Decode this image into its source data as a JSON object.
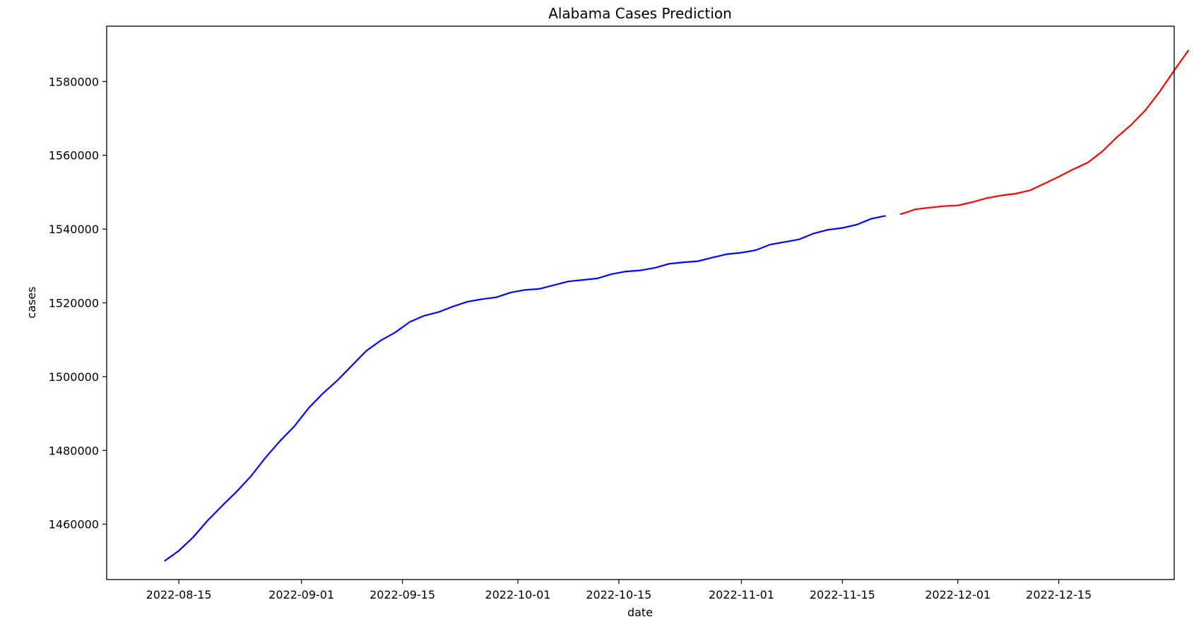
{
  "chart_data": {
    "type": "line",
    "title": "Alabama Cases Prediction",
    "xlabel": "date",
    "ylabel": "cases",
    "xlim": [
      "2022-08-05",
      "2022-12-31"
    ],
    "ylim": [
      1445000,
      1595000
    ],
    "x_ticks": [
      "2022-08-15",
      "2022-09-01",
      "2022-09-15",
      "2022-10-01",
      "2022-10-15",
      "2022-11-01",
      "2022-11-15",
      "2022-12-01",
      "2022-12-15"
    ],
    "y_ticks": [
      1460000,
      1480000,
      1500000,
      1520000,
      1540000,
      1560000,
      1580000
    ],
    "grid": false,
    "series": [
      {
        "color": "#0000ff",
        "points": [
          [
            "2022-08-13",
            1450000
          ],
          [
            "2022-08-15",
            1452800
          ],
          [
            "2022-08-17",
            1456500
          ],
          [
            "2022-08-19",
            1461000
          ],
          [
            "2022-08-21",
            1465000
          ],
          [
            "2022-08-23",
            1468800
          ],
          [
            "2022-08-25",
            1473000
          ],
          [
            "2022-08-27",
            1478000
          ],
          [
            "2022-08-29",
            1482500
          ],
          [
            "2022-08-31",
            1486500
          ],
          [
            "2022-09-02",
            1491500
          ],
          [
            "2022-09-04",
            1495500
          ],
          [
            "2022-09-06",
            1499000
          ],
          [
            "2022-09-08",
            1503000
          ],
          [
            "2022-09-10",
            1507000
          ],
          [
            "2022-09-12",
            1509800
          ],
          [
            "2022-09-14",
            1512000
          ],
          [
            "2022-09-16",
            1514800
          ],
          [
            "2022-09-18",
            1516500
          ],
          [
            "2022-09-20",
            1517500
          ],
          [
            "2022-09-22",
            1519000
          ],
          [
            "2022-09-24",
            1520300
          ],
          [
            "2022-09-26",
            1521000
          ],
          [
            "2022-09-28",
            1521500
          ],
          [
            "2022-09-30",
            1522800
          ],
          [
            "2022-10-02",
            1523500
          ],
          [
            "2022-10-04",
            1523800
          ],
          [
            "2022-10-06",
            1524800
          ],
          [
            "2022-10-08",
            1525800
          ],
          [
            "2022-10-10",
            1526200
          ],
          [
            "2022-10-12",
            1526600
          ],
          [
            "2022-10-14",
            1527800
          ],
          [
            "2022-10-16",
            1528500
          ],
          [
            "2022-10-18",
            1528800
          ],
          [
            "2022-10-20",
            1529500
          ],
          [
            "2022-10-22",
            1530600
          ],
          [
            "2022-10-24",
            1531000
          ],
          [
            "2022-10-26",
            1531300
          ],
          [
            "2022-10-28",
            1532300
          ],
          [
            "2022-10-30",
            1533200
          ],
          [
            "2022-11-01",
            1533600
          ],
          [
            "2022-11-03",
            1534300
          ],
          [
            "2022-11-05",
            1535800
          ],
          [
            "2022-11-07",
            1536500
          ],
          [
            "2022-11-09",
            1537200
          ],
          [
            "2022-11-11",
            1538800
          ],
          [
            "2022-11-13",
            1539800
          ],
          [
            "2022-11-15",
            1540300
          ],
          [
            "2022-11-17",
            1541200
          ],
          [
            "2022-11-19",
            1542800
          ],
          [
            "2022-11-21",
            1543600
          ]
        ]
      },
      {
        "color": "#ff0000",
        "points": [
          [
            "2022-11-23",
            1544000
          ],
          [
            "2022-11-24",
            1544600
          ],
          [
            "2022-11-25",
            1545300
          ],
          [
            "2022-11-27",
            1545800
          ],
          [
            "2022-11-29",
            1546200
          ],
          [
            "2022-12-01",
            1546400
          ],
          [
            "2022-12-03",
            1547300
          ],
          [
            "2022-12-05",
            1548400
          ],
          [
            "2022-12-07",
            1549100
          ],
          [
            "2022-12-09",
            1549600
          ],
          [
            "2022-12-11",
            1550500
          ],
          [
            "2022-12-13",
            1552300
          ],
          [
            "2022-12-15",
            1554200
          ],
          [
            "2022-12-17",
            1556200
          ],
          [
            "2022-12-19",
            1558000
          ],
          [
            "2022-12-21",
            1561000
          ],
          [
            "2022-12-23",
            1564800
          ],
          [
            "2022-12-25",
            1568200
          ],
          [
            "2022-12-27",
            1572200
          ],
          [
            "2022-12-29",
            1577300
          ],
          [
            "2022-12-31",
            1583000
          ],
          [
            "2023-01-02",
            1588500
          ]
        ]
      }
    ]
  }
}
